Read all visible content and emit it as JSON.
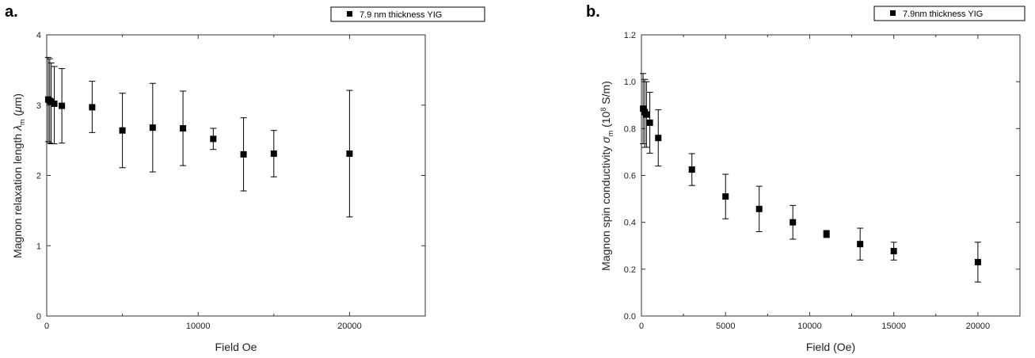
{
  "chart_data": [
    {
      "type": "scatter",
      "panel_label": "a.",
      "xlabel": "Field Oe",
      "ylabel_parts": [
        "Magnon relaxation length ",
        "λ",
        "m",
        " (",
        "μ",
        "m)"
      ],
      "xlim": [
        0,
        25000
      ],
      "ylim": [
        0,
        4
      ],
      "xticks": [
        0,
        10000,
        20000
      ],
      "xtick_labels": [
        "0",
        "10000",
        "20000"
      ],
      "x_minor_ticks": [
        5000,
        15000
      ],
      "yticks": [
        0,
        1,
        2,
        3,
        4
      ],
      "ytick_labels": [
        "0",
        "1",
        "2",
        "3",
        "4"
      ],
      "legend": "7.9 nm thickness YIG",
      "legend_position": "top-right",
      "series": [
        {
          "name": "7.9 nm thickness YIG",
          "points": [
            {
              "x": 100,
              "y": 3.08,
              "err_lo": 0.6,
              "err_hi": 0.6
            },
            {
              "x": 200,
              "y": 3.06,
              "err_lo": 0.6,
              "err_hi": 0.6
            },
            {
              "x": 300,
              "y": 3.05,
              "err_lo": 0.6,
              "err_hi": 0.55
            },
            {
              "x": 500,
              "y": 3.02,
              "err_lo": 0.57,
              "err_hi": 0.53
            },
            {
              "x": 1000,
              "y": 2.99,
              "err_lo": 0.53,
              "err_hi": 0.53
            },
            {
              "x": 3000,
              "y": 2.97,
              "err_lo": 0.36,
              "err_hi": 0.37
            },
            {
              "x": 5000,
              "y": 2.64,
              "err_lo": 0.53,
              "err_hi": 0.53
            },
            {
              "x": 7000,
              "y": 2.68,
              "err_lo": 0.63,
              "err_hi": 0.63
            },
            {
              "x": 9000,
              "y": 2.67,
              "err_lo": 0.53,
              "err_hi": 0.53
            },
            {
              "x": 11000,
              "y": 2.52,
              "err_lo": 0.15,
              "err_hi": 0.15
            },
            {
              "x": 13000,
              "y": 2.3,
              "err_lo": 0.52,
              "err_hi": 0.52
            },
            {
              "x": 15000,
              "y": 2.31,
              "err_lo": 0.33,
              "err_hi": 0.33
            },
            {
              "x": 20000,
              "y": 2.31,
              "err_lo": 0.9,
              "err_hi": 0.9
            }
          ]
        }
      ]
    },
    {
      "type": "scatter",
      "panel_label": "b.",
      "xlabel": "Field (Oe)",
      "ylabel_parts": [
        "Magnon spin conductivity ",
        "σ",
        "m",
        " (10",
        "8",
        " S/m)"
      ],
      "xlim": [
        0,
        22500
      ],
      "ylim": [
        0,
        1.2
      ],
      "xticks": [
        0,
        5000,
        10000,
        15000,
        20000
      ],
      "xtick_labels": [
        "0",
        "5000",
        "10000",
        "15000",
        "20000"
      ],
      "x_minor_ticks": [
        2500,
        7500,
        12500,
        17500
      ],
      "yticks": [
        0,
        0.2,
        0.4,
        0.6,
        0.8,
        1.0,
        1.2
      ],
      "ytick_labels": [
        "0.0",
        "0.2",
        "0.4",
        "0.6",
        "0.8",
        "1.0",
        "1.2"
      ],
      "legend": "7.9nm thickness YIG",
      "legend_position": "top-right",
      "series": [
        {
          "name": "7.9nm thickness YIG",
          "points": [
            {
              "x": 100,
              "y": 0.885,
              "err_lo": 0.15,
              "err_hi": 0.15
            },
            {
              "x": 200,
              "y": 0.87,
              "err_lo": 0.15,
              "err_hi": 0.14
            },
            {
              "x": 300,
              "y": 0.86,
              "err_lo": 0.14,
              "err_hi": 0.14
            },
            {
              "x": 500,
              "y": 0.825,
              "err_lo": 0.13,
              "err_hi": 0.13
            },
            {
              "x": 1000,
              "y": 0.76,
              "err_lo": 0.12,
              "err_hi": 0.12
            },
            {
              "x": 3000,
              "y": 0.625,
              "err_lo": 0.068,
              "err_hi": 0.068
            },
            {
              "x": 5000,
              "y": 0.51,
              "err_lo": 0.095,
              "err_hi": 0.095
            },
            {
              "x": 7000,
              "y": 0.457,
              "err_lo": 0.097,
              "err_hi": 0.097
            },
            {
              "x": 9000,
              "y": 0.4,
              "err_lo": 0.072,
              "err_hi": 0.072
            },
            {
              "x": 11000,
              "y": 0.35,
              "err_lo": 0.015,
              "err_hi": 0.015
            },
            {
              "x": 13000,
              "y": 0.307,
              "err_lo": 0.068,
              "err_hi": 0.068
            },
            {
              "x": 15000,
              "y": 0.277,
              "err_lo": 0.038,
              "err_hi": 0.038
            },
            {
              "x": 20000,
              "y": 0.23,
              "err_lo": 0.085,
              "err_hi": 0.085
            }
          ]
        }
      ]
    }
  ]
}
